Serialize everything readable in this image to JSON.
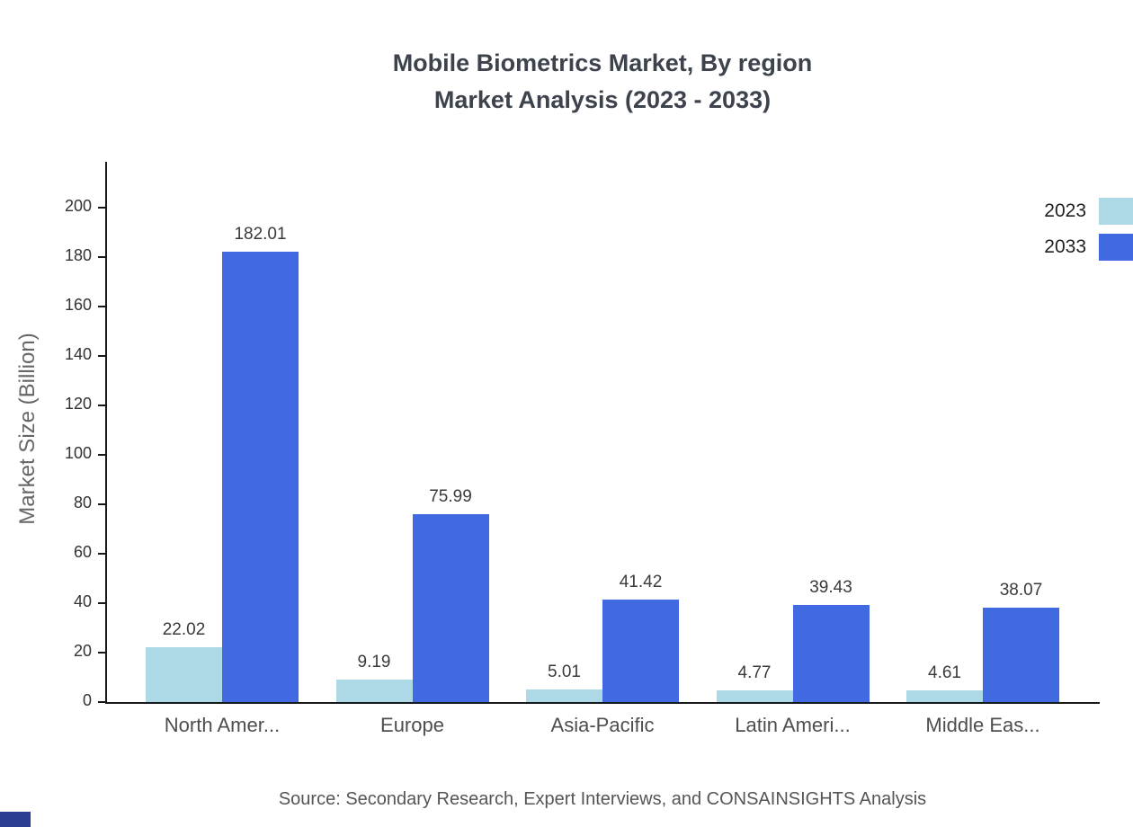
{
  "title": {
    "line1": "Mobile Biometrics Market, By region",
    "line2": "Market Analysis (2023 - 2033)"
  },
  "ylabel": "Market Size (Billion)",
  "source": "Source: Secondary Research, Expert Interviews, and CONSAINSIGHTS Analysis",
  "chart_data": {
    "type": "bar",
    "title": "Mobile Biometrics Market, By region Market Analysis (2023 - 2033)",
    "xlabel": "",
    "ylabel": "Market Size (Billion)",
    "categories": [
      "North Amer...",
      "Europe",
      "Asia-Pacific",
      "Latin Ameri...",
      "Middle Eas..."
    ],
    "series": [
      {
        "name": "2023",
        "color": "#ADD8E6",
        "values": [
          22.02,
          9.19,
          5.01,
          4.77,
          4.61
        ]
      },
      {
        "name": "2033",
        "color": "#4169E1",
        "values": [
          182.01,
          75.99,
          41.42,
          39.43,
          38.07
        ]
      }
    ],
    "ylim": [
      0,
      220
    ],
    "yticks": [
      0,
      20,
      40,
      60,
      80,
      100,
      120,
      140,
      160,
      180,
      200
    ],
    "grid": false,
    "legend_position": "top-right"
  }
}
